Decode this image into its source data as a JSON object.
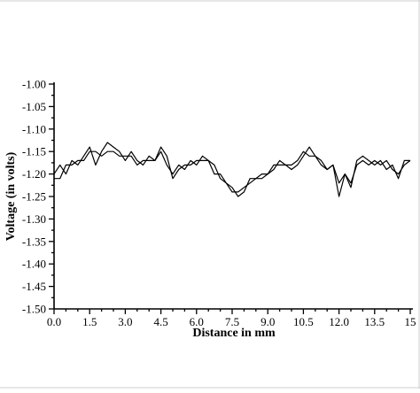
{
  "chart_data": {
    "type": "line",
    "title": "",
    "xlabel": "Distance in mm",
    "ylabel": "Voltage (in volts)",
    "xlim": [
      0,
      15
    ],
    "ylim": [
      -1.5,
      -1.0
    ],
    "grid": false,
    "x_tick_labels": [
      "0.0",
      "1.5",
      "3.0",
      "4.5",
      "6.0",
      "7.5",
      "9.0",
      "10.5",
      "12.0",
      "13.5",
      "15"
    ],
    "x_tick_values": [
      0,
      1.5,
      3,
      4.5,
      6,
      7.5,
      9,
      10.5,
      12,
      13.5,
      15
    ],
    "y_tick_labels": [
      "-1.00",
      "-1.05",
      "-1.10",
      "-1.15",
      "-1.20",
      "-1.25",
      "-1.30",
      "-1.35",
      "-1.40",
      "-1.45",
      "-1.50"
    ],
    "y_tick_values": [
      -1.0,
      -1.05,
      -1.1,
      -1.15,
      -1.2,
      -1.25,
      -1.3,
      -1.35,
      -1.4,
      -1.45,
      -1.5
    ],
    "series": [
      {
        "x": [
          0,
          0.25,
          0.5,
          0.75,
          1,
          1.25,
          1.5,
          1.75,
          2,
          2.25,
          2.5,
          2.75,
          3,
          3.25,
          3.5,
          3.75,
          4,
          4.25,
          4.5,
          4.75,
          5,
          5.25,
          5.5,
          5.75,
          6,
          6.25,
          6.5,
          6.75,
          7,
          7.25,
          7.5,
          7.75,
          8,
          8.25,
          8.5,
          8.75,
          9,
          9.25,
          9.5,
          9.75,
          10,
          10.25,
          10.5,
          10.75,
          11,
          11.25,
          11.5,
          11.75,
          12,
          12.25,
          12.5,
          12.75,
          13,
          13.25,
          13.5,
          13.75,
          14,
          14.25,
          14.5,
          14.75,
          15
        ],
        "values": [
          -1.2,
          -1.18,
          -1.2,
          -1.17,
          -1.18,
          -1.16,
          -1.14,
          -1.18,
          -1.15,
          -1.13,
          -1.14,
          -1.15,
          -1.17,
          -1.15,
          -1.17,
          -1.18,
          -1.16,
          -1.17,
          -1.15,
          -1.18,
          -1.2,
          -1.18,
          -1.19,
          -1.17,
          -1.18,
          -1.16,
          -1.17,
          -1.2,
          -1.2,
          -1.22,
          -1.24,
          -1.24,
          -1.23,
          -1.22,
          -1.21,
          -1.2,
          -1.2,
          -1.19,
          -1.17,
          -1.18,
          -1.19,
          -1.18,
          -1.16,
          -1.14,
          -1.16,
          -1.18,
          -1.19,
          -1.18,
          -1.25,
          -1.2,
          -1.23,
          -1.17,
          -1.16,
          -1.17,
          -1.18,
          -1.17,
          -1.19,
          -1.18,
          -1.21,
          -1.17,
          -1.17
        ]
      },
      {
        "x": [
          0,
          0.25,
          0.5,
          0.75,
          1,
          1.25,
          1.5,
          1.75,
          2,
          2.25,
          2.5,
          2.75,
          3,
          3.25,
          3.5,
          3.75,
          4,
          4.25,
          4.5,
          4.75,
          5,
          5.25,
          5.5,
          5.75,
          6,
          6.25,
          6.5,
          6.75,
          7,
          7.25,
          7.5,
          7.75,
          8,
          8.25,
          8.5,
          8.75,
          9,
          9.25,
          9.5,
          9.75,
          10,
          10.25,
          10.5,
          10.75,
          11,
          11.25,
          11.5,
          11.75,
          12,
          12.25,
          12.5,
          12.75,
          13,
          13.25,
          13.5,
          13.75,
          14,
          14.25,
          14.5,
          14.75,
          15
        ],
        "values": [
          -1.21,
          -1.21,
          -1.18,
          -1.18,
          -1.17,
          -1.17,
          -1.15,
          -1.15,
          -1.16,
          -1.15,
          -1.15,
          -1.16,
          -1.16,
          -1.16,
          -1.18,
          -1.17,
          -1.17,
          -1.17,
          -1.14,
          -1.16,
          -1.21,
          -1.19,
          -1.18,
          -1.18,
          -1.17,
          -1.17,
          -1.17,
          -1.18,
          -1.21,
          -1.22,
          -1.23,
          -1.25,
          -1.24,
          -1.21,
          -1.21,
          -1.21,
          -1.2,
          -1.18,
          -1.18,
          -1.18,
          -1.18,
          -1.17,
          -1.15,
          -1.16,
          -1.16,
          -1.17,
          -1.19,
          -1.18,
          -1.22,
          -1.2,
          -1.22,
          -1.18,
          -1.17,
          -1.18,
          -1.17,
          -1.18,
          -1.17,
          -1.19,
          -1.2,
          -1.18,
          -1.17
        ]
      }
    ]
  }
}
